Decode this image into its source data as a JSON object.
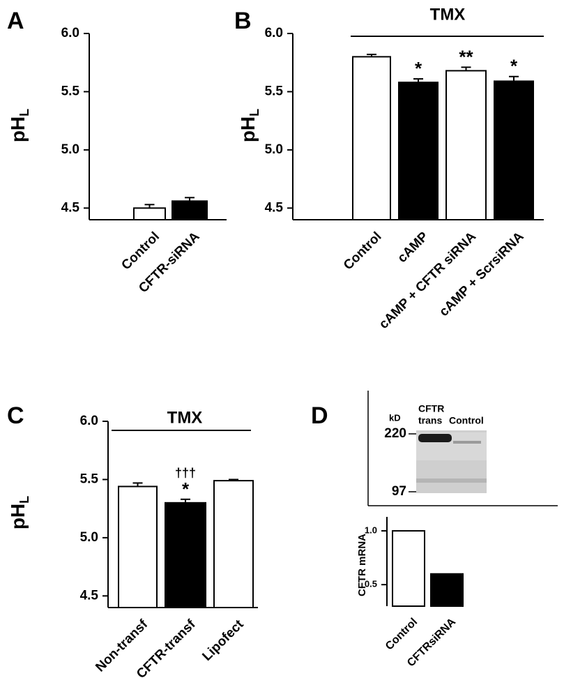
{
  "chart_data": [
    {
      "type": "bar",
      "panel_label": "A",
      "y_label": "pH",
      "y_label_subscript": "L",
      "categories": [
        "Control",
        "CFTR-siRNA"
      ],
      "values": [
        4.5,
        4.56
      ],
      "errors": [
        0.03,
        0.03
      ],
      "colors": [
        "#ffffff",
        "#000000"
      ],
      "ylim": [
        4.4,
        6.0
      ],
      "yticks": [
        {
          "value": 4.5,
          "label": "4.5"
        },
        {
          "value": 5,
          "label": "5.0"
        },
        {
          "value": 5.5,
          "label": "5.5"
        },
        {
          "value": 6,
          "label": "6.0"
        }
      ]
    },
    {
      "type": "bar",
      "panel_label": "B",
      "y_label": "pH",
      "y_label_subscript": "L",
      "bracket_label": "TMX",
      "categories": [
        "Control",
        "cAMP",
        "cAMP + CFTR siRNA",
        "cAMP + ScrsiRNA"
      ],
      "values": [
        5.8,
        5.58,
        5.68,
        5.59
      ],
      "errors": [
        0.02,
        0.03,
        0.03,
        0.04
      ],
      "colors": [
        "#ffffff",
        "#000000",
        "#ffffff",
        "#000000"
      ],
      "annotations": [
        [],
        [
          "*"
        ],
        [
          "**"
        ],
        [
          "*"
        ]
      ],
      "ylim": [
        4.4,
        6.0
      ],
      "yticks": [
        {
          "value": 4.5,
          "label": "4.5"
        },
        {
          "value": 5,
          "label": "5.0"
        },
        {
          "value": 5.5,
          "label": "5.5"
        },
        {
          "value": 6,
          "label": "6.0"
        }
      ]
    },
    {
      "type": "bar",
      "panel_label": "C",
      "y_label": "pH",
      "y_label_subscript": "L",
      "bracket_label": "TMX",
      "categories": [
        "Non-transf",
        "CFTR-transf",
        "Lipofect"
      ],
      "values": [
        5.44,
        5.3,
        5.49
      ],
      "errors": [
        0.03,
        0.03,
        0.01
      ],
      "colors": [
        "#ffffff",
        "#000000",
        "#ffffff"
      ],
      "annotations": [
        [],
        [
          "†††",
          "*"
        ],
        []
      ],
      "ylim": [
        4.4,
        6.0
      ],
      "yticks": [
        {
          "value": 4.5,
          "label": "4.5"
        },
        {
          "value": 5,
          "label": "5.0"
        },
        {
          "value": 5.5,
          "label": "5.5"
        },
        {
          "value": 6,
          "label": "6.0"
        }
      ]
    },
    {
      "type": "bar",
      "panel_label": "D",
      "y_label": "CFTR mRNA",
      "blot": {
        "unit_label": "kD",
        "lanes": [
          [
            "CFTR",
            "trans"
          ],
          [
            "Control"
          ]
        ],
        "markers": [
          220,
          97
        ]
      },
      "categories": [
        "Control",
        "CFTRsiRNA"
      ],
      "values": [
        1.0,
        0.6
      ],
      "colors": [
        "#ffffff",
        "#000000"
      ],
      "ylim": [
        0.3,
        1.13
      ],
      "yticks": [
        {
          "value": 0.5,
          "label": "0.5"
        },
        {
          "value": 1,
          "label": "1.0"
        }
      ]
    }
  ]
}
